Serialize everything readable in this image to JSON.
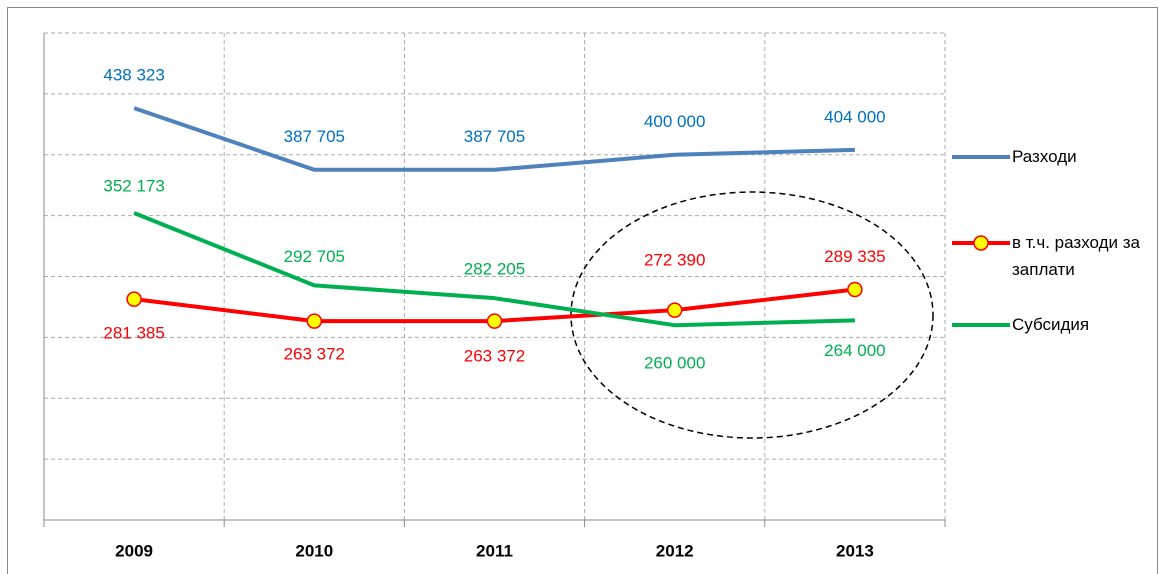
{
  "chart_data": {
    "type": "line",
    "categories": [
      "2009",
      "2010",
      "2011",
      "2012",
      "2013"
    ],
    "series": [
      {
        "name": "Разходи",
        "color": "#4f81bd",
        "label_color": "#0070c0",
        "values": [
          438323,
          387705,
          387705,
          400000,
          404000
        ],
        "value_labels": [
          "438 323",
          "387 705",
          "387 705",
          "400 000",
          "404 000"
        ]
      },
      {
        "name": "в т.ч. разходи за заплати",
        "color": "#ff0000",
        "label_color": "#ff0000",
        "marker": "circle",
        "marker_color": "#ffff00",
        "values": [
          281385,
          263372,
          263372,
          272390,
          289335
        ],
        "value_labels": [
          "281 385",
          "263 372",
          "263 372",
          "272 390",
          "289 335"
        ]
      },
      {
        "name": "Субсидия",
        "color": "#00b050",
        "label_color": "#00b050",
        "values": [
          352173,
          292705,
          282205,
          260000,
          264000
        ],
        "value_labels": [
          "352 173",
          "292 705",
          "282 205",
          "260 000",
          "264 000"
        ]
      }
    ],
    "ylim": [
      100000,
      500000
    ],
    "yticks": [
      100000,
      150000,
      200000,
      250000,
      300000,
      350000,
      400000,
      450000,
      500000
    ],
    "grid": true,
    "legend": "right"
  }
}
